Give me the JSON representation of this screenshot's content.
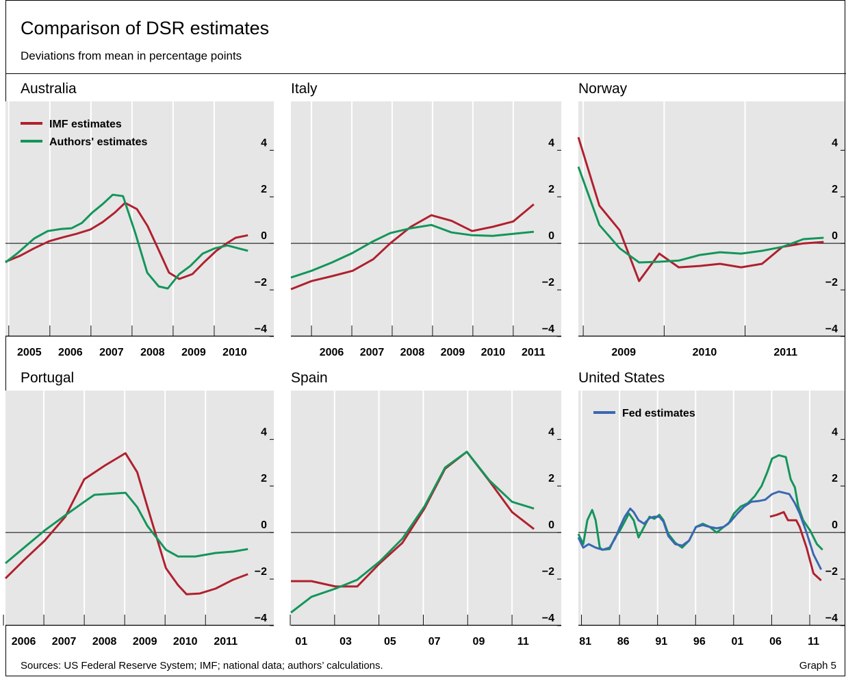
{
  "title": "Comparison of DSR estimates",
  "subtitle": "Deviations from mean in percentage points",
  "source": "Sources: US Federal Reserve System; IMF; national data; authors’ calculations.",
  "graph_label": "Graph 5",
  "chart_data": [
    {
      "type": "line",
      "title": "Australia",
      "legend": "upper left",
      "xlim": [
        2004.92,
        2011.45
      ],
      "ylim": [
        -4,
        6.1
      ],
      "xticks": [
        2005,
        2006,
        2007,
        2008,
        2009,
        2010
      ],
      "yticks": [
        {
          "value": -4,
          "label": "−4"
        },
        {
          "value": -2,
          "label": "−2"
        },
        0,
        2,
        4
      ],
      "series": [
        {
          "name": "IMF estimates",
          "color": "#b0202e",
          "x": [
            2004.92,
            2005.28,
            2005.62,
            2005.98,
            2006.32,
            2006.65,
            2006.98,
            2007.28,
            2007.58,
            2007.83,
            2008.12,
            2008.38,
            2008.65,
            2008.9,
            2009.15,
            2009.47,
            2009.75,
            2010.05,
            2010.32,
            2010.52,
            2010.82
          ],
          "values": [
            -0.79,
            -0.53,
            -0.21,
            0.09,
            0.26,
            0.41,
            0.59,
            0.91,
            1.32,
            1.74,
            1.47,
            0.74,
            -0.29,
            -1.26,
            -1.53,
            -1.32,
            -0.82,
            -0.32,
            0.02,
            0.24,
            0.35
          ]
        },
        {
          "name": "Authors' estimates",
          "color": "#13955a",
          "x": [
            2004.92,
            2005.2,
            2005.62,
            2005.95,
            2006.28,
            2006.53,
            2006.78,
            2007.03,
            2007.28,
            2007.53,
            2007.78,
            2008.08,
            2008.37,
            2008.65,
            2008.87,
            2009.15,
            2009.42,
            2009.72,
            2010.02,
            2010.32,
            2010.58,
            2010.82
          ],
          "values": [
            -0.82,
            -0.44,
            0.21,
            0.53,
            0.62,
            0.65,
            0.88,
            1.32,
            1.68,
            2.09,
            2.03,
            0.44,
            -1.26,
            -1.85,
            -1.94,
            -1.32,
            -0.97,
            -0.44,
            -0.21,
            -0.09,
            -0.21,
            -0.32
          ]
        }
      ]
    },
    {
      "type": "line",
      "title": "Italy",
      "xlim": [
        2005.49,
        2012.19
      ],
      "ylim": [
        -4,
        6.1
      ],
      "xticks": [
        2006,
        2007,
        2008,
        2009,
        2010,
        2011
      ],
      "yticks": [
        {
          "value": -4,
          "label": "−4"
        },
        {
          "value": -2,
          "label": "−2"
        },
        0,
        2,
        4
      ],
      "series": [
        {
          "color": "#b0202e",
          "x": [
            2005.49,
            2006.0,
            2006.51,
            2007.02,
            2007.53,
            2007.95,
            2008.46,
            2008.97,
            2009.47,
            2009.98,
            2010.49,
            2011.0,
            2011.51
          ],
          "values": [
            -1.97,
            -1.62,
            -1.41,
            -1.18,
            -0.68,
            0,
            0.71,
            1.21,
            0.97,
            0.53,
            0.71,
            0.94,
            1.68
          ]
        },
        {
          "color": "#13955a",
          "x": [
            2005.49,
            2006.0,
            2006.51,
            2007.02,
            2007.53,
            2007.95,
            2008.46,
            2008.97,
            2009.47,
            2009.98,
            2010.49,
            2011.0,
            2011.51
          ],
          "values": [
            -1.47,
            -1.18,
            -0.82,
            -0.41,
            0.09,
            0.44,
            0.65,
            0.79,
            0.47,
            0.35,
            0.32,
            0.41,
            0.5
          ]
        }
      ]
    },
    {
      "type": "line",
      "title": "Norway",
      "xlim": [
        2008.94,
        2012.23
      ],
      "ylim": [
        -4,
        6.1
      ],
      "xticks": [
        2009,
        2010,
        2011
      ],
      "yticks": [
        {
          "value": -4,
          "label": "−4"
        },
        {
          "value": -2,
          "label": "−2"
        },
        0,
        2,
        4
      ],
      "series": [
        {
          "color": "#b0202e",
          "x": [
            2008.94,
            2009.2,
            2009.45,
            2009.69,
            2009.94,
            2010.18,
            2010.44,
            2010.69,
            2010.95,
            2011.21,
            2011.46,
            2011.72,
            2011.97
          ],
          "values": [
            4.56,
            1.62,
            0.56,
            -1.62,
            -0.44,
            -1.03,
            -0.97,
            -0.88,
            -1.03,
            -0.88,
            -0.15,
            0,
            0.06
          ]
        },
        {
          "color": "#13955a",
          "x": [
            2008.94,
            2009.2,
            2009.45,
            2009.69,
            2009.94,
            2010.18,
            2010.44,
            2010.69,
            2010.95,
            2011.21,
            2011.46,
            2011.72,
            2011.97
          ],
          "values": [
            3.29,
            0.79,
            -0.21,
            -0.82,
            -0.79,
            -0.74,
            -0.5,
            -0.38,
            -0.44,
            -0.32,
            -0.15,
            0.18,
            0.24
          ]
        }
      ]
    },
    {
      "type": "line",
      "title": "Portugal",
      "xlim": [
        2006.05,
        2012.69
      ],
      "ylim": [
        -4,
        6.1
      ],
      "xticks": [
        2006,
        2007,
        2008,
        2009,
        2010,
        2011
      ],
      "yticks": [
        {
          "value": -4,
          "label": "−4"
        },
        {
          "value": -2,
          "label": "−2"
        },
        0,
        2,
        4
      ],
      "series": [
        {
          "color": "#b0202e",
          "x": [
            2006.05,
            2006.51,
            2007.02,
            2007.53,
            2008.0,
            2008.51,
            2009.02,
            2009.31,
            2009.56,
            2010.02,
            2010.32,
            2010.53,
            2010.86,
            2011.25,
            2011.68,
            2012.05
          ],
          "values": [
            -1.97,
            -1.18,
            -0.35,
            0.68,
            2.29,
            2.88,
            3.41,
            2.59,
            1.12,
            -1.53,
            -2.26,
            -2.65,
            -2.62,
            -2.41,
            -2.03,
            -1.79
          ]
        },
        {
          "color": "#13955a",
          "x": [
            2006.05,
            2006.51,
            2007.02,
            2007.53,
            2008.0,
            2008.25,
            2008.51,
            2009.02,
            2009.31,
            2009.56,
            2010.02,
            2010.32,
            2010.75,
            2011.25,
            2011.68,
            2012.05
          ],
          "values": [
            -1.32,
            -0.65,
            0.09,
            0.74,
            1.32,
            1.62,
            1.65,
            1.71,
            1.09,
            0.29,
            -0.74,
            -1.03,
            -1.03,
            -0.88,
            -0.82,
            -0.71
          ]
        }
      ]
    },
    {
      "type": "line",
      "title": "Spain",
      "xlim": [
        2001.03,
        2013.22
      ],
      "ylim": [
        -4,
        6.1
      ],
      "xticks": [
        {
          "value": 2001,
          "label": "01"
        },
        {
          "value": 2003,
          "label": "03"
        },
        {
          "value": 2005,
          "label": "05"
        },
        {
          "value": 2007,
          "label": "07"
        },
        {
          "value": 2009,
          "label": "09"
        },
        {
          "value": 2011,
          "label": "11"
        }
      ],
      "yticks": [
        {
          "value": -4,
          "label": "−4"
        },
        {
          "value": -2,
          "label": "−2"
        },
        0,
        2,
        4
      ],
      "series": [
        {
          "color": "#b0202e",
          "x": [
            2001.03,
            2001.96,
            2003.04,
            2004.02,
            2005.04,
            2006.06,
            2007.05,
            2007.98,
            2008.96,
            2009.98,
            2011.0,
            2011.99
          ],
          "values": [
            -2.09,
            -2.09,
            -2.32,
            -2.32,
            -1.32,
            -0.44,
            1.03,
            2.74,
            3.47,
            2.21,
            0.88,
            0.15
          ]
        },
        {
          "color": "#13955a",
          "x": [
            2001.03,
            2001.96,
            2003.04,
            2004.02,
            2005.04,
            2006.06,
            2007.05,
            2007.98,
            2008.96,
            2009.98,
            2011.0,
            2011.99
          ],
          "values": [
            -3.44,
            -2.76,
            -2.41,
            -2.03,
            -1.24,
            -0.26,
            1.12,
            2.79,
            3.47,
            2.24,
            1.32,
            1.03
          ]
        }
      ]
    },
    {
      "type": "line",
      "title": "United States",
      "legend": "upper left",
      "xlim": [
        1980.59,
        2015.59
      ],
      "ylim": [
        -4,
        6.1
      ],
      "xticks": [
        {
          "value": 1981,
          "label": "81"
        },
        {
          "value": 1986,
          "label": "86"
        },
        {
          "value": 1991,
          "label": "91"
        },
        {
          "value": 1996,
          "label": "96"
        },
        {
          "value": 2001,
          "label": "01"
        },
        {
          "value": 2006,
          "label": "06"
        },
        {
          "value": 2011,
          "label": "11"
        }
      ],
      "yticks": [
        {
          "value": -4,
          "label": "−4"
        },
        {
          "value": -2,
          "label": "−2"
        },
        0,
        2,
        4
      ],
      "series": [
        {
          "color": "#13955a",
          "x": [
            1980.59,
            1981.23,
            1981.77,
            1982.41,
            1982.86,
            1983.41,
            1983.77,
            1984.68,
            1985.41,
            1986.05,
            1986.68,
            1987.23,
            1987.86,
            1988.5,
            1989.23,
            1989.95,
            1990.59,
            1991.23,
            1991.77,
            1992.41,
            1993.32,
            1994.23,
            1995.14,
            1996.05,
            1996.95,
            1997.86,
            1998.77,
            1999.68,
            2000.32,
            2001.05,
            2001.95,
            2002.86,
            2003.77,
            2004.68,
            2005.41,
            2006.05,
            2006.95,
            2007.86,
            2008.5,
            2009.05,
            2009.5,
            2010.14,
            2011.05,
            2011.95,
            2012.68
          ],
          "values": [
            -0.06,
            -0.5,
            0.53,
            0.97,
            0.53,
            -0.65,
            -0.74,
            -0.71,
            -0.21,
            0.09,
            0.47,
            0.82,
            0.53,
            -0.21,
            0.24,
            0.68,
            0.59,
            0.76,
            0.53,
            -0.06,
            -0.44,
            -0.65,
            -0.35,
            0.24,
            0.38,
            0.24,
            0,
            0.24,
            0.38,
            0.82,
            1.12,
            1.26,
            1.56,
            2.0,
            2.59,
            3.18,
            3.32,
            3.24,
            2.29,
            1.94,
            1.12,
            0.53,
            0.09,
            -0.5,
            -0.74
          ]
        },
        {
          "name": "Fed estimates",
          "color": "#3a67b2",
          "x": [
            1980.59,
            1981.23,
            1981.95,
            1982.86,
            1983.77,
            1984.68,
            1985.41,
            1986.05,
            1986.68,
            1987.41,
            1987.86,
            1988.5,
            1989.23,
            1989.95,
            1990.59,
            1991.23,
            1991.77,
            1992.41,
            1993.32,
            1994.23,
            1995.14,
            1996.05,
            1996.95,
            1997.86,
            1998.77,
            1999.68,
            2000.59,
            2001.5,
            2002.41,
            2003.32,
            2004.23,
            2005.14,
            2006.05,
            2006.95,
            2007.59,
            2008.32,
            2009.05,
            2009.68,
            2010.59,
            2011.5,
            2012.5
          ],
          "values": [
            -0.21,
            -0.65,
            -0.5,
            -0.65,
            -0.74,
            -0.65,
            -0.26,
            0.24,
            0.68,
            1.03,
            0.88,
            0.53,
            0.38,
            0.62,
            0.68,
            0.68,
            0.47,
            -0.15,
            -0.5,
            -0.56,
            -0.35,
            0.24,
            0.32,
            0.24,
            0.18,
            0.24,
            0.47,
            0.82,
            1.12,
            1.32,
            1.35,
            1.41,
            1.65,
            1.76,
            1.71,
            1.65,
            1.26,
            0.82,
            0,
            -0.94,
            -1.59
          ]
        },
        {
          "color": "#b0202e",
          "x": [
            2005.77,
            2006.68,
            2007.59,
            2008.14,
            2009.23,
            2009.68,
            2010.59,
            2011.5,
            2012.5
          ],
          "values": [
            0.68,
            0.76,
            0.88,
            0.53,
            0.53,
            0.24,
            -0.65,
            -1.76,
            -2.06
          ]
        }
      ]
    }
  ]
}
